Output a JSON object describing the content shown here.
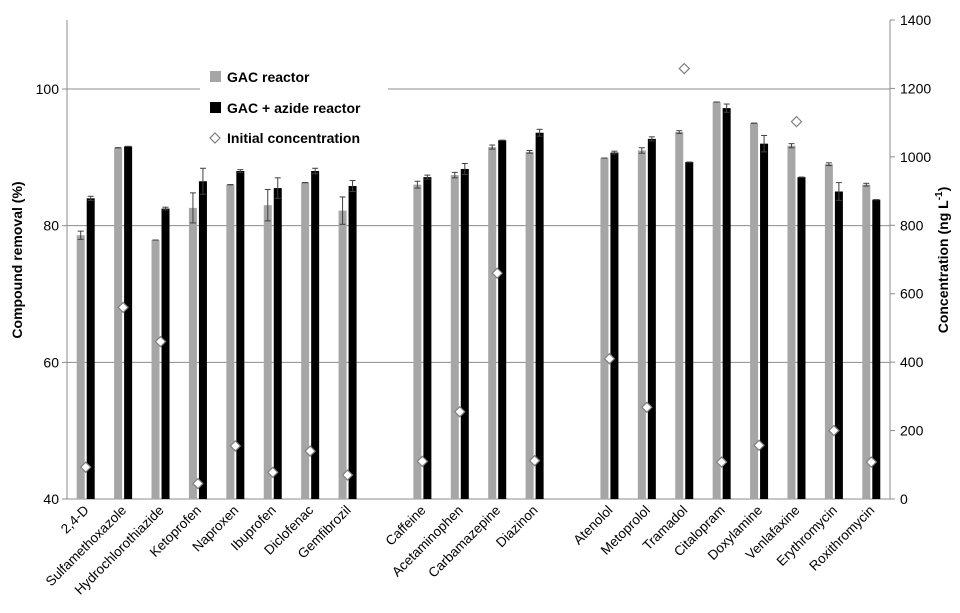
{
  "chart_data": {
    "type": "bar",
    "y_left": {
      "label": "Compound removal (%)",
      "range": [
        40,
        100
      ],
      "ticks": [
        40,
        60,
        80,
        100
      ]
    },
    "y_right": {
      "label": "Concentration (ng L-1)",
      "range": [
        0,
        1400
      ],
      "ticks": [
        0,
        200,
        400,
        600,
        800,
        1000,
        1200,
        1400
      ]
    },
    "grid": "horizontal",
    "legend_position": "top-left",
    "groups": [
      {
        "categories": [
          "2,4-D",
          "Sulfamethoxazole",
          "Hydrochlorothiazide",
          "Ketoprofen",
          "Naproxen",
          "Ibuprofen",
          "Diclofenac",
          "Gemfibrozil"
        ]
      },
      {
        "categories": [
          "Caffeine",
          "Acetaminophen",
          "Carbamazepine",
          "Diazinon"
        ]
      },
      {
        "categories": [
          "Atenolol",
          "Metoprolol",
          "Tramadol",
          "Citalopram",
          "Doxylamine",
          "Venlafaxine",
          "Erythromycin",
          "Roxithromycin"
        ]
      }
    ],
    "series": [
      {
        "name": "GAC reactor",
        "color": "#a6a6a6",
        "axis": "left",
        "values": [
          78.6,
          91.4,
          77.9,
          82.6,
          86.0,
          83.0,
          86.3,
          82.2,
          86.0,
          87.4,
          91.5,
          90.8,
          89.9,
          91.0,
          93.7,
          98.1,
          95.0,
          91.7,
          89.0,
          86.0
        ],
        "errors": [
          0.6,
          0.0,
          0.0,
          2.2,
          0.0,
          2.3,
          0.0,
          2.0,
          0.5,
          0.4,
          0.3,
          0.2,
          0.0,
          0.4,
          0.2,
          0.0,
          0.0,
          0.3,
          0.2,
          0.2
        ]
      },
      {
        "name": "GAC + azide reactor",
        "color": "#000000",
        "axis": "left",
        "values": [
          84.0,
          91.6,
          82.5,
          86.5,
          88.0,
          85.5,
          88.0,
          85.8,
          87.1,
          88.3,
          92.5,
          93.6,
          90.7,
          92.7,
          89.3,
          97.2,
          92.0,
          87.1,
          85.0,
          83.8
        ],
        "errors": [
          0.3,
          0.0,
          0.2,
          1.9,
          0.2,
          1.5,
          0.4,
          0.8,
          0.3,
          0.8,
          0.0,
          0.5,
          0.2,
          0.3,
          0.0,
          0.6,
          1.2,
          0.0,
          1.3,
          0.0
        ]
      },
      {
        "name": "Initial concentration",
        "marker": "diamond",
        "axis": "right",
        "values": [
          93,
          560,
          460,
          45,
          155,
          78,
          140,
          70,
          110,
          255,
          660,
          112,
          410,
          268,
          1258,
          108,
          157,
          1103,
          200,
          108
        ]
      }
    ]
  }
}
